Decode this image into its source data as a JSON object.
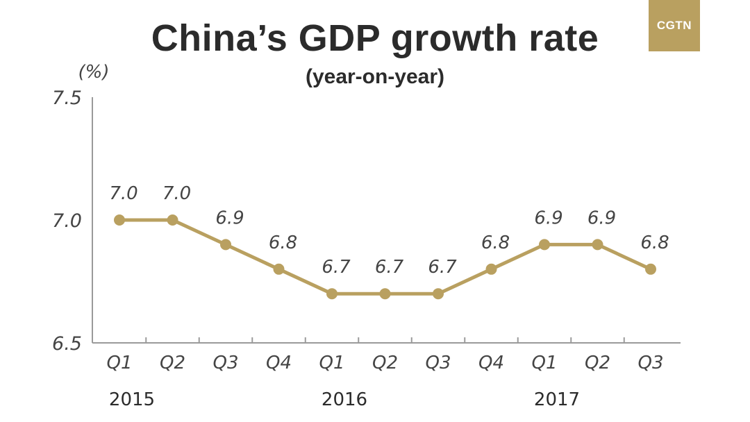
{
  "header": {
    "title": "China’s GDP growth rate",
    "subtitle": "(year-on-year)",
    "logo_text": "CGTN"
  },
  "colors": {
    "accent": "#b9a060",
    "axis": "#9a9a9a",
    "text": "#2b2b2b"
  },
  "chart_data": {
    "type": "line",
    "title": "China’s GDP growth rate",
    "subtitle": "(year-on-year)",
    "ylabel": "(%)",
    "xlabel": "",
    "ylim": [
      6.5,
      7.5
    ],
    "yticks": [
      "7.5",
      "7.0",
      "6.5"
    ],
    "categories": [
      "Q1",
      "Q2",
      "Q3",
      "Q4",
      "Q1",
      "Q2",
      "Q3",
      "Q4",
      "Q1",
      "Q2",
      "Q3"
    ],
    "years": [
      {
        "label": "2015",
        "start_index": 0
      },
      {
        "label": "2016",
        "start_index": 4
      },
      {
        "label": "2017",
        "start_index": 8
      }
    ],
    "series": [
      {
        "values": [
          7.0,
          7.0,
          6.9,
          6.8,
          6.7,
          6.7,
          6.7,
          6.8,
          6.9,
          6.9,
          6.8
        ],
        "labels": [
          "7.0",
          "7.0",
          "6.9",
          "6.8",
          "6.7",
          "6.7",
          "6.7",
          "6.8",
          "6.9",
          "6.9",
          "6.8"
        ]
      }
    ],
    "grid": false,
    "legend": "none"
  }
}
